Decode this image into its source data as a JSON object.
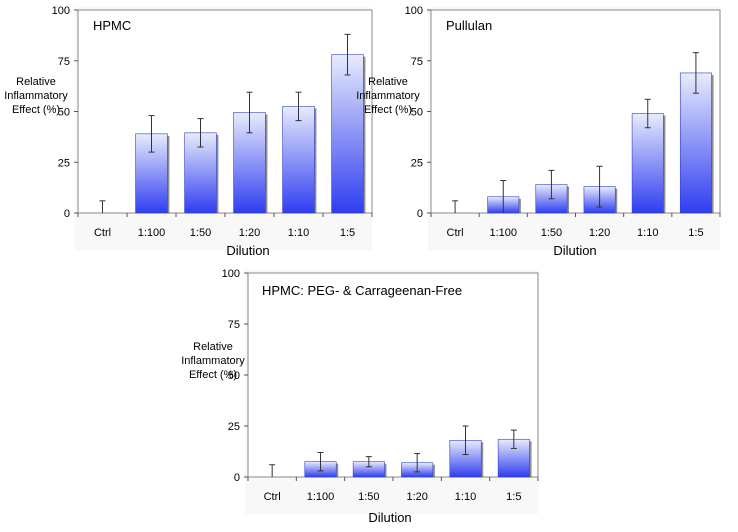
{
  "chart_data": [
    {
      "type": "bar",
      "title": "HPMC",
      "xlabel": "Dilution",
      "ylabel": [
        "Relative",
        "Inflammatory",
        "Effect (%)"
      ],
      "categories": [
        "Ctrl",
        "1:100",
        "1:50",
        "1:20",
        "1:10",
        "1:5"
      ],
      "values": [
        0,
        39,
        39.5,
        49.5,
        52.5,
        78
      ],
      "errors": [
        6,
        9,
        7,
        10,
        7,
        10
      ],
      "ylim": [
        0,
        100
      ],
      "yticks": [
        "0",
        "25",
        "50",
        "75",
        "100"
      ],
      "grid": false,
      "colors": {
        "bar_top": "#e8ecfc",
        "bar_bottom": "#2f3df0",
        "plot_bg": "#f5f5f5"
      }
    },
    {
      "type": "bar",
      "title": "Pullulan",
      "xlabel": "Dilution",
      "ylabel": [
        "Relative",
        "Inflammatory",
        "Effect (%)"
      ],
      "categories": [
        "Ctrl",
        "1:100",
        "1:50",
        "1:20",
        "1:10",
        "1:5"
      ],
      "values": [
        0,
        8,
        14,
        13,
        49,
        69
      ],
      "errors": [
        6,
        8,
        7,
        10,
        7,
        10
      ],
      "ylim": [
        0,
        100
      ],
      "yticks": [
        "0",
        "25",
        "50",
        "75",
        "100"
      ],
      "grid": false,
      "colors": {
        "bar_top": "#e8ecfc",
        "bar_bottom": "#2f3df0",
        "plot_bg": "#f5f5f5"
      }
    },
    {
      "type": "bar",
      "title": "HPMC: PEG- & Carrageenan-Free",
      "xlabel": "Dilution",
      "ylabel": [
        "Relative",
        "Inflammatory",
        "Effect (%)"
      ],
      "categories": [
        "Ctrl",
        "1:100",
        "1:50",
        "1:20",
        "1:10",
        "1:5"
      ],
      "values": [
        0,
        7.5,
        7.5,
        7,
        18,
        18.5
      ],
      "errors": [
        6,
        4.5,
        2.5,
        4.5,
        7,
        4.5
      ],
      "ylim": [
        0,
        100
      ],
      "yticks": [
        "0",
        "25",
        "50",
        "75",
        "100"
      ],
      "grid": false,
      "colors": {
        "bar_top": "#e8ecfc",
        "bar_bottom": "#2f3df0",
        "plot_bg": "#f5f5f5"
      }
    }
  ]
}
